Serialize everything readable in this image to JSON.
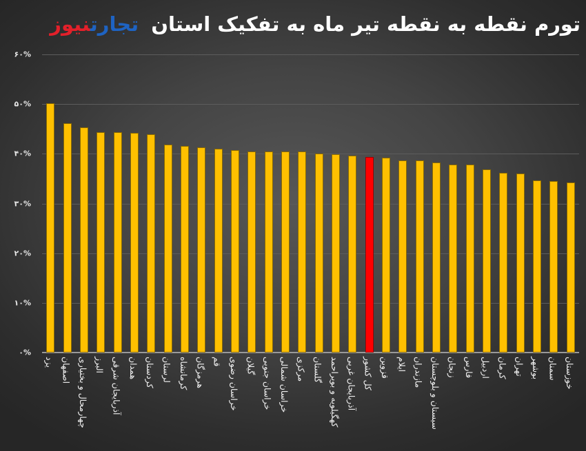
{
  "header": {
    "title": "تورم نقطه به نقطه تیر ماه به تفکیک استان",
    "logo_part1": "تجارت",
    "logo_part2": "نیوز"
  },
  "colors": {
    "bar": "#ffc000",
    "highlight_bar": "#ff0000",
    "logo_blue": "#1e63c2",
    "logo_red": "#e3202a",
    "title_text": "#ffffff"
  },
  "chart_data": {
    "type": "bar",
    "title": "تورم نقطه به نقطه تیر ماه به تفکیک استان",
    "xlabel": "",
    "ylabel": "",
    "ylim": [
      0,
      60
    ],
    "yticks": [
      "۰%",
      "۱۰%",
      "۲۰%",
      "۳۰%",
      "۴۰%",
      "۵۰%",
      "۶۰%"
    ],
    "grid": true,
    "legend": null,
    "highlight_category": "کل کشور",
    "categories": [
      "یزد",
      "اصفهان",
      "چهارمحال و بختیاری",
      "البرز",
      "آذربایجان شرقی",
      "همدان",
      "کردستان",
      "لرستان",
      "کرمانشاه",
      "هرمزگان",
      "قم",
      "خراسان رضوی",
      "گیلان",
      "خراسان جنوبی",
      "خراسان شمالی",
      "مرکزی",
      "گلستان",
      "کهگیلویه و بویراحمد",
      "آذربایجان غربی",
      "کل کشور",
      "قزوین",
      "ایلام",
      "مازندران",
      "سیستان و بلوچستان",
      "زنجان",
      "فارس",
      "اردبیل",
      "کرمان",
      "تهران",
      "بوشهر",
      "سمنان",
      "خوزستان"
    ],
    "values": [
      50.1,
      46.2,
      45.3,
      44.4,
      44.3,
      44.2,
      43.9,
      41.8,
      41.6,
      41.3,
      41.0,
      40.8,
      40.5,
      40.4,
      40.4,
      40.4,
      40.1,
      39.9,
      39.7,
      39.3,
      39.2,
      38.6,
      38.6,
      38.3,
      37.8,
      37.8,
      36.8,
      36.1,
      36.0,
      34.7,
      34.5,
      34.2
    ]
  }
}
